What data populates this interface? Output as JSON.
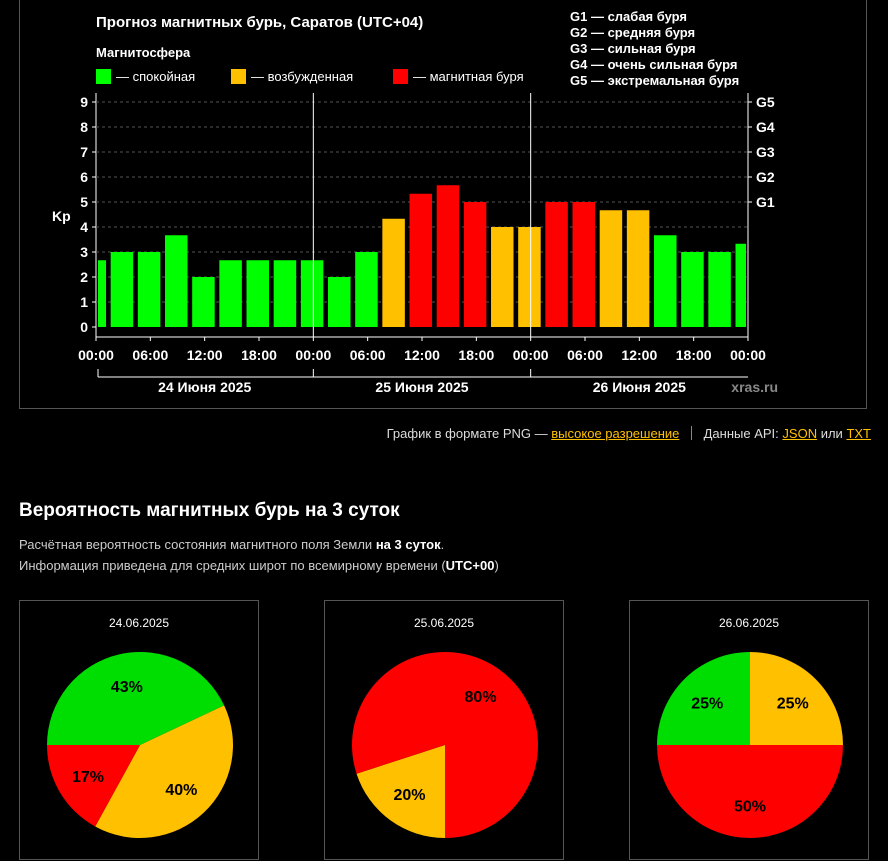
{
  "chart_data": [
    {
      "type": "bar",
      "title": "Прогноз магнитных бурь, Саратов (UTC+04)",
      "legend_title": "Магнитосфера",
      "legend": [
        {
          "label": "— спокойная",
          "color": "#00ff00"
        },
        {
          "label": "— возбужденная",
          "color": "#ffc000"
        },
        {
          "label": "— магнитная буря",
          "color": "#ff0000"
        }
      ],
      "storm_scale": [
        "G1 — слабая буря",
        "G2 — средняя буря",
        "G3 — сильная буря",
        "G4 — очень сильная буря",
        "G5 — экстремальная буря"
      ],
      "ylabel": "Kp",
      "ylim": [
        0,
        9
      ],
      "yticks": [
        "0",
        "1",
        "2",
        "3",
        "4",
        "5",
        "6",
        "7",
        "8",
        "9"
      ],
      "g_levels": [
        {
          "label": "G1",
          "kp": 5
        },
        {
          "label": "G2",
          "kp": 6
        },
        {
          "label": "G3",
          "kp": 7
        },
        {
          "label": "G4",
          "kp": 8
        },
        {
          "label": "G5",
          "kp": 9
        }
      ],
      "x_ticks": [
        "00:00",
        "06:00",
        "12:00",
        "18:00",
        "00:00",
        "06:00",
        "12:00",
        "18:00",
        "00:00",
        "06:00",
        "12:00",
        "18:00",
        "00:00"
      ],
      "day_labels": [
        "24 Июня 2025",
        "25 Июня 2025",
        "26 Июня 2025"
      ],
      "watermark": "xras.ru",
      "values": [
        2.67,
        3,
        3,
        3.67,
        2,
        2.67,
        2.67,
        2.67,
        2.67,
        2,
        3,
        4.33,
        5.33,
        5.67,
        5,
        4,
        4,
        5,
        5,
        4.67,
        4.67,
        3.67,
        3,
        3,
        3.33
      ],
      "colors": {
        "quiet": "#00ff00",
        "active": "#ffc000",
        "storm": "#ff0000"
      }
    },
    {
      "type": "pie",
      "title": "24.06.2025",
      "slices": [
        {
          "label": "43%",
          "value": 43,
          "color": "#00dd00"
        },
        {
          "label": "40%",
          "value": 40,
          "color": "#ffc000"
        },
        {
          "label": "17%",
          "value": 17,
          "color": "#ff0000"
        }
      ]
    },
    {
      "type": "pie",
      "title": "25.06.2025",
      "slices": [
        {
          "label": "20%",
          "value": 20,
          "color": "#ffc000"
        },
        {
          "label": "80%",
          "value": 80,
          "color": "#ff0000"
        }
      ]
    },
    {
      "type": "pie",
      "title": "26.06.2025",
      "slices": [
        {
          "label": "25%",
          "value": 25,
          "color": "#ffc000"
        },
        {
          "label": "50%",
          "value": 50,
          "color": "#ff0000"
        },
        {
          "label": "25%",
          "value": 25,
          "color": "#00dd00"
        }
      ]
    }
  ],
  "links": {
    "png_text": "График в формате PNG —",
    "hires": "высокое разрешение",
    "api_text": "Данные API:",
    "json": "JSON",
    "or": "или",
    "txt": "TXT"
  },
  "probability": {
    "title": "Вероятность магнитных бурь на 3 суток",
    "line1_a": "Расчётная вероятность состояния магнитного поля Земли",
    "line1_b": "на 3 суток",
    "line1_c": ".",
    "line2_a": "Информация приведена для средних широт по всемирному времени (",
    "line2_b": "UTC+00",
    "line2_c": ")"
  }
}
